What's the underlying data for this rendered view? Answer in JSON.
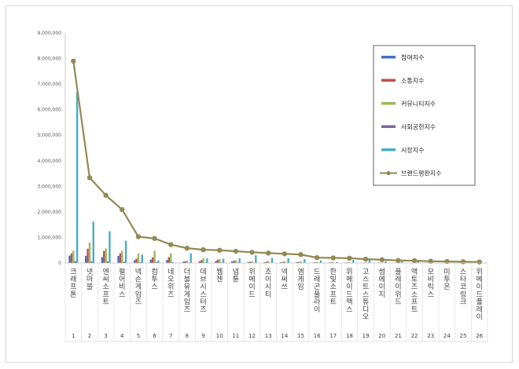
{
  "chart_data": {
    "type": "bar",
    "ylim": [
      0,
      9000000
    ],
    "y_ticks": [
      "0",
      "1,000,000",
      "2,000,000",
      "3,000,000",
      "4,000,000",
      "5,000,000",
      "6,000,000",
      "7,000,000",
      "8,000,000",
      "9,000,000"
    ],
    "categories": [
      "크래프톤",
      "넷마블",
      "엔씨소프트",
      "펄어비스",
      "넥슨게임즈",
      "컴투스",
      "네오위즈",
      "더블유게임즈",
      "데브시스터즈",
      "웹젠",
      "넵튠",
      "위메이드",
      "조이시티",
      "넥써쓰",
      "엠게임",
      "드래곤플라이",
      "한빛소프트",
      "위메이드맥스",
      "고스트스튜디오",
      "썸에이지",
      "플레이위드",
      "액토즈소프트",
      "모비릭스",
      "미투온",
      "스타코링크",
      "위메이드플레이"
    ],
    "indices": [
      "1",
      "2",
      "3",
      "4",
      "5",
      "6",
      "7",
      "8",
      "9",
      "10",
      "11",
      "12",
      "13",
      "14",
      "15",
      "16",
      "17",
      "18",
      "19",
      "20",
      "21",
      "22",
      "23",
      "24",
      "25",
      "26"
    ],
    "legend_placement": "top-right",
    "grid": false,
    "series": [
      {
        "name": "참여지수",
        "color": "#4472C4",
        "kind": "bar",
        "values": [
          290000,
          280000,
          230000,
          280000,
          110000,
          130000,
          120000,
          50000,
          70000,
          70000,
          60000,
          40000,
          30000,
          30000,
          30000,
          20000,
          20000,
          20000,
          10000,
          10000,
          10000,
          10000,
          10000,
          10000,
          10000,
          5000
        ]
      },
      {
        "name": "소통지수",
        "color": "#C0504D",
        "kind": "bar",
        "values": [
          380000,
          560000,
          470000,
          380000,
          170000,
          220000,
          230000,
          70000,
          110000,
          120000,
          90000,
          50000,
          50000,
          40000,
          40000,
          30000,
          30000,
          20000,
          15000,
          15000,
          10000,
          10000,
          10000,
          10000,
          10000,
          5000
        ]
      },
      {
        "name": "커뮤니티지수",
        "color": "#9BBB59",
        "kind": "bar",
        "values": [
          480000,
          800000,
          570000,
          480000,
          370000,
          480000,
          380000,
          90000,
          190000,
          150000,
          110000,
          70000,
          80000,
          70000,
          60000,
          40000,
          30000,
          30000,
          20000,
          15000,
          15000,
          10000,
          10000,
          10000,
          10000,
          5000
        ]
      },
      {
        "name": "사회공헌지수",
        "color": "#8064A2",
        "kind": "bar",
        "values": [
          70000,
          60000,
          60000,
          50000,
          30000,
          40000,
          30000,
          20000,
          20000,
          20000,
          20000,
          10000,
          10000,
          10000,
          10000,
          5000,
          5000,
          5000,
          5000,
          5000,
          5000,
          5000,
          5000,
          5000,
          5000,
          5000
        ]
      },
      {
        "name": "시장지수",
        "color": "#4BACC6",
        "kind": "bar",
        "values": [
          6680000,
          1620000,
          1240000,
          870000,
          330000,
          100000,
          0,
          380000,
          180000,
          170000,
          180000,
          300000,
          200000,
          190000,
          150000,
          100000,
          40000,
          120000,
          180000,
          70000,
          60000,
          60000,
          0,
          0,
          0,
          0
        ]
      },
      {
        "name": "브랜드평판지수",
        "color": "#938953",
        "kind": "line",
        "values": [
          7900000,
          3340000,
          2650000,
          2090000,
          1030000,
          960000,
          720000,
          580000,
          520000,
          500000,
          460000,
          420000,
          390000,
          360000,
          330000,
          210000,
          200000,
          190000,
          150000,
          130000,
          100000,
          90000,
          70000,
          60000,
          50000,
          40000
        ]
      }
    ]
  }
}
